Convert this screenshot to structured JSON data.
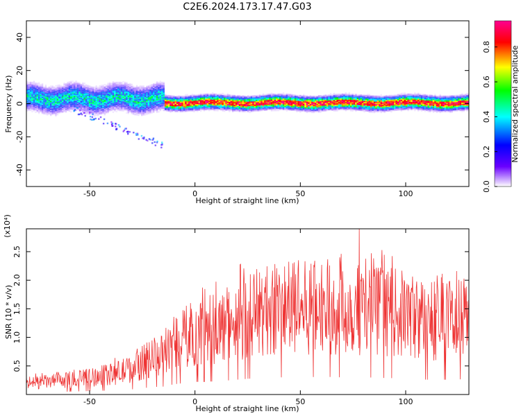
{
  "title": "C2E6.2024.173.17.47.G03",
  "chart_data": [
    {
      "type": "heatmap",
      "title": "C2E6.2024.173.17.47.G03",
      "xlabel": "Height of straight line (km)",
      "ylabel": "Frequency (Hz)",
      "xlim": [
        -80,
        130
      ],
      "ylim": [
        -50,
        50
      ],
      "xticks": [
        -50,
        0,
        50,
        100
      ],
      "yticks": [
        -40,
        -20,
        0,
        20,
        40
      ],
      "colorbar": {
        "label": "Normalized spectral amplitude",
        "range": [
          0,
          0.95
        ],
        "ticks": [
          0.0,
          0.2,
          0.4,
          0.6,
          0.8
        ],
        "colormap": [
          "#ffffff",
          "#6a00ff",
          "#0000ff",
          "#00ffff",
          "#00ff00",
          "#ffff00",
          "#ff0000",
          "#ff0090"
        ]
      },
      "bands": [
        {
          "x": [
            -80,
            -15
          ],
          "center_hz": 3,
          "halfwidth_hz": 8,
          "peak": 0.5
        },
        {
          "x": [
            -15,
            130
          ],
          "center_hz": 0.5,
          "halfwidth_hz": 4,
          "peak": 0.95
        }
      ],
      "scatter_tail": {
        "x": [
          -58,
          -15
        ],
        "y": [
          -3,
          -25
        ],
        "level": 0.3
      }
    },
    {
      "type": "line",
      "xlabel": "Height of straight line (km)",
      "ylabel": "SNR (10 * v/v)",
      "y_multiplier": "(x10⁴)",
      "xlim": [
        -80,
        130
      ],
      "ylim": [
        0,
        2.9
      ],
      "xticks": [
        -50,
        0,
        50,
        100
      ],
      "yticks": [
        0.5,
        1.0,
        1.5,
        2.0,
        2.5
      ],
      "color": "#ee3333",
      "envelope": {
        "x": [
          -80,
          -60,
          -40,
          -30,
          -20,
          -14,
          -10,
          0,
          10,
          20,
          30,
          40,
          50,
          60,
          70,
          80,
          90,
          100,
          110,
          120,
          130
        ],
        "y": [
          0.2,
          0.25,
          0.35,
          0.45,
          0.65,
          0.7,
          0.9,
          1.1,
          1.15,
          1.3,
          1.45,
          1.5,
          1.5,
          1.55,
          1.5,
          1.5,
          1.45,
          1.4,
          1.3,
          1.3,
          1.35
        ]
      },
      "peak": {
        "x": 78,
        "y": 2.9
      }
    }
  ]
}
